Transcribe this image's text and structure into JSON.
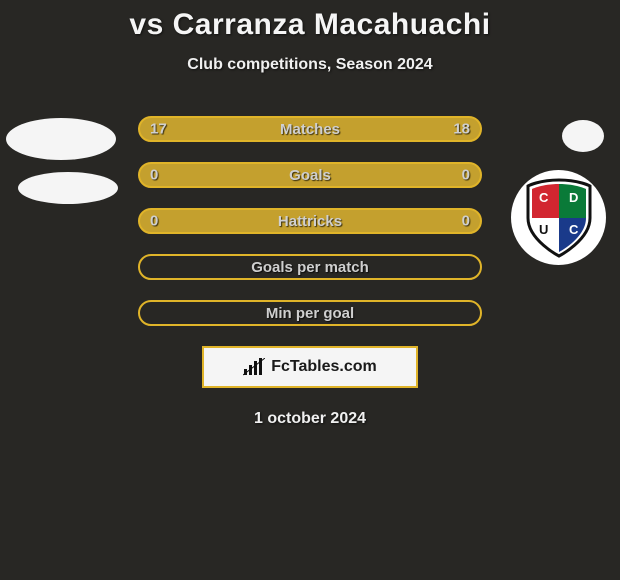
{
  "title": "vs Carranza Macahuachi",
  "subtitle": "Club competitions, Season 2024",
  "background_color": "#282724",
  "avatar_color": "#f5f5f5",
  "stat_rows": [
    {
      "label": "Matches",
      "left": "17",
      "right": "18",
      "bg": "#c4a02e",
      "border": "#e0b429"
    },
    {
      "label": "Goals",
      "left": "0",
      "right": "0",
      "bg": "#c4a02e",
      "border": "#e0b429"
    },
    {
      "label": "Hattricks",
      "left": "0",
      "right": "0",
      "bg": "#c4a02e",
      "border": "#e0b429"
    },
    {
      "label": "Goals per match",
      "left": "",
      "right": "",
      "bg": "transparent",
      "border": "#e0b429"
    },
    {
      "label": "Min per goal",
      "left": "",
      "right": "",
      "bg": "transparent",
      "border": "#e0b429"
    }
  ],
  "crest": {
    "top": "#0a7a38",
    "left": "#d22630",
    "right": "#1a3a8a",
    "bottom": "#ffffff",
    "outline": "#111111",
    "letters": "CDUC",
    "letter_color": "#111111"
  },
  "footer_brand": "FcTables.com",
  "footer_border": "#e0b429",
  "date": "1 october 2024",
  "text_color": "#cfcfcf",
  "title_fontsize": 30,
  "subtitle_fontsize": 16,
  "stat_fontsize": 15
}
